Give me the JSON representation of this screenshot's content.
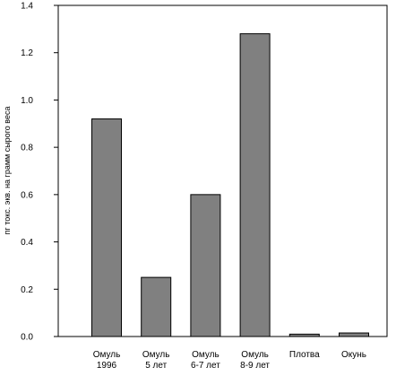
{
  "chart_data": {
    "type": "bar",
    "title": "",
    "xlabel": "",
    "ylabel": "пг токс. экв. на грамм сырого веса",
    "ylim": [
      0,
      1.4
    ],
    "y_ticks": [
      "0.0",
      "0.2",
      "0.4",
      "0.6",
      "0.8",
      "1.0",
      "1.2",
      "1.4"
    ],
    "grid": false,
    "legend": "none",
    "bar_color": "#808080",
    "categories": [
      [
        "Омуль",
        "1996"
      ],
      [
        "Омуль",
        "5 лет"
      ],
      [
        "Омуль",
        "6-7 лет"
      ],
      [
        "Омуль",
        "8-9 лет"
      ],
      [
        "Плотва"
      ],
      [
        "Окунь"
      ]
    ],
    "values": [
      0.92,
      0.25,
      0.6,
      1.28,
      0.01,
      0.015
    ]
  }
}
